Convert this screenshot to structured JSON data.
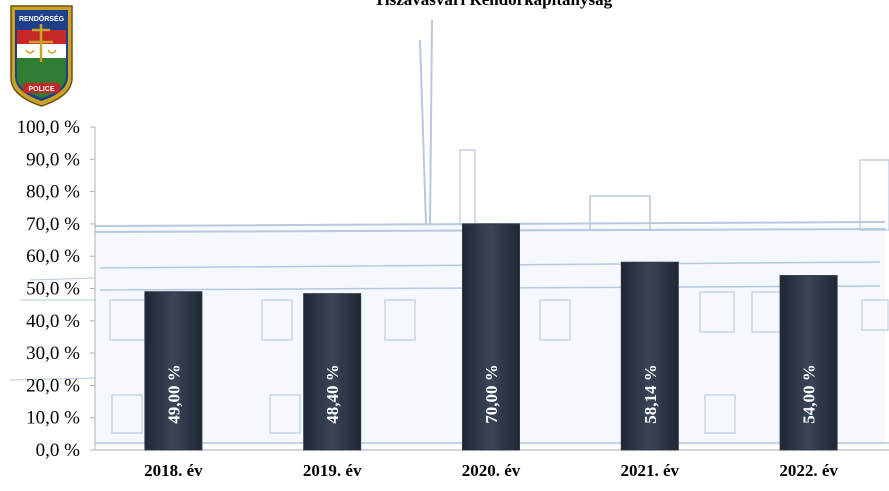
{
  "chart_data": {
    "type": "bar",
    "title": "Tiszavasvári Rendőrkapitányság",
    "categories": [
      "2018. év",
      "2019. év",
      "2020. év",
      "2021. év",
      "2022. év"
    ],
    "values": [
      49.0,
      48.4,
      70.0,
      58.14,
      54.0
    ],
    "value_labels": [
      "49,00 %",
      "48,40 %",
      "70,00 %",
      "58,14 %",
      "54,00 %"
    ],
    "yticks": [
      "0,0 %",
      "10,0 %",
      "20,0 %",
      "30,0 %",
      "40,0 %",
      "50,0 %",
      "60,0 %",
      "70,0 %",
      "80,0 %",
      "90,0 %",
      "100,0 %"
    ],
    "ylim": [
      0,
      100
    ],
    "xlabel": "",
    "ylabel": "",
    "grid": false,
    "legend": "none",
    "bar_color": "#2f3848"
  },
  "logo": {
    "top_text": "RENDŐRSÉG",
    "bottom_text": "POLICE"
  }
}
